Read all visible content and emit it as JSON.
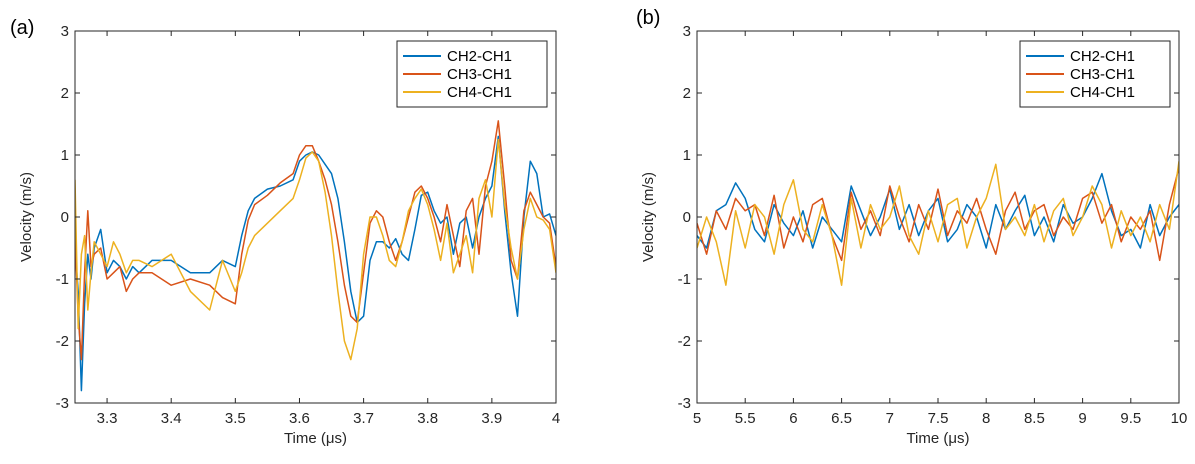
{
  "chart_data": [
    {
      "type": "line",
      "panel_label": "(a)",
      "xlabel": "Time (μs)",
      "ylabel": "Velocity (m/s)",
      "xlim": [
        3.25,
        4.0
      ],
      "ylim": [
        -3,
        3
      ],
      "xticks": [
        3.3,
        3.4,
        3.5,
        3.6,
        3.7,
        3.8,
        3.9,
        4
      ],
      "xtick_labels": [
        "3.3",
        "3.4",
        "3.5",
        "3.6",
        "3.7",
        "3.8",
        "3.9",
        "4"
      ],
      "yticks": [
        -3,
        -2,
        -1,
        0,
        1,
        2,
        3
      ],
      "ytick_labels": [
        "-3",
        "-2",
        "-1",
        "0",
        "1",
        "2",
        "3"
      ],
      "grid": false,
      "legend_position": "top-right",
      "series": [
        {
          "name": "CH2-CH1",
          "color": "#0072BD",
          "x": [
            3.25,
            3.255,
            3.26,
            3.265,
            3.27,
            3.275,
            3.28,
            3.29,
            3.3,
            3.31,
            3.32,
            3.33,
            3.34,
            3.35,
            3.37,
            3.4,
            3.43,
            3.46,
            3.48,
            3.5,
            3.51,
            3.52,
            3.53,
            3.55,
            3.57,
            3.59,
            3.6,
            3.61,
            3.62,
            3.63,
            3.64,
            3.65,
            3.66,
            3.67,
            3.68,
            3.69,
            3.7,
            3.71,
            3.72,
            3.73,
            3.74,
            3.75,
            3.76,
            3.77,
            3.78,
            3.79,
            3.8,
            3.81,
            3.82,
            3.83,
            3.84,
            3.85,
            3.86,
            3.87,
            3.88,
            3.89,
            3.9,
            3.91,
            3.92,
            3.93,
            3.94,
            3.95,
            3.96,
            3.97,
            3.98,
            3.99,
            4.0
          ],
          "y": [
            -0.5,
            -1.2,
            -2.8,
            -1.4,
            -0.6,
            -1.0,
            -0.5,
            -0.2,
            -0.9,
            -0.7,
            -0.8,
            -1.0,
            -0.8,
            -0.9,
            -0.7,
            -0.7,
            -0.9,
            -0.9,
            -0.7,
            -0.8,
            -0.3,
            0.1,
            0.3,
            0.45,
            0.5,
            0.6,
            0.9,
            1.0,
            1.05,
            1.0,
            0.85,
            0.7,
            0.3,
            -0.4,
            -1.2,
            -1.7,
            -1.6,
            -0.7,
            -0.4,
            -0.4,
            -0.5,
            -0.35,
            -0.6,
            -0.7,
            -0.2,
            0.35,
            0.4,
            0.1,
            -0.1,
            0.0,
            -0.6,
            -0.1,
            0.0,
            -0.5,
            0.0,
            0.3,
            0.5,
            1.3,
            0.1,
            -0.9,
            -1.6,
            0.0,
            0.9,
            0.7,
            0.0,
            0.05,
            -0.3
          ]
        },
        {
          "name": "CH3-CH1",
          "color": "#D95319",
          "x": [
            3.25,
            3.255,
            3.26,
            3.265,
            3.27,
            3.275,
            3.28,
            3.29,
            3.3,
            3.31,
            3.32,
            3.33,
            3.34,
            3.35,
            3.37,
            3.4,
            3.43,
            3.46,
            3.48,
            3.5,
            3.51,
            3.52,
            3.53,
            3.55,
            3.57,
            3.59,
            3.6,
            3.61,
            3.62,
            3.63,
            3.64,
            3.65,
            3.66,
            3.67,
            3.68,
            3.69,
            3.7,
            3.71,
            3.72,
            3.73,
            3.74,
            3.75,
            3.76,
            3.77,
            3.78,
            3.79,
            3.8,
            3.81,
            3.82,
            3.83,
            3.84,
            3.85,
            3.86,
            3.87,
            3.88,
            3.89,
            3.9,
            3.91,
            3.92,
            3.93,
            3.94,
            3.95,
            3.96,
            3.97,
            3.98,
            3.99,
            4.0
          ],
          "y": [
            -0.3,
            -1.6,
            -2.3,
            -0.9,
            0.1,
            -0.8,
            -0.6,
            -0.5,
            -1.0,
            -0.9,
            -0.8,
            -1.2,
            -1.0,
            -0.9,
            -0.9,
            -1.1,
            -1.0,
            -1.1,
            -1.3,
            -1.4,
            -0.6,
            -0.05,
            0.2,
            0.35,
            0.55,
            0.7,
            1.0,
            1.15,
            1.15,
            0.9,
            0.6,
            0.2,
            -0.4,
            -1.1,
            -1.6,
            -1.7,
            -0.9,
            -0.1,
            0.1,
            0.0,
            -0.4,
            -0.7,
            -0.4,
            0.0,
            0.4,
            0.5,
            0.3,
            0.0,
            -0.4,
            0.2,
            -0.3,
            -0.8,
            0.1,
            0.3,
            -0.6,
            0.5,
            0.9,
            1.55,
            0.5,
            -0.7,
            -1.0,
            0.1,
            0.4,
            0.2,
            0.0,
            -0.1,
            -0.8
          ]
        },
        {
          "name": "CH4-CH1",
          "color": "#EDB120",
          "x": [
            3.25,
            3.255,
            3.26,
            3.265,
            3.27,
            3.275,
            3.28,
            3.29,
            3.3,
            3.31,
            3.32,
            3.33,
            3.34,
            3.35,
            3.37,
            3.4,
            3.43,
            3.46,
            3.48,
            3.5,
            3.51,
            3.52,
            3.53,
            3.55,
            3.57,
            3.59,
            3.6,
            3.61,
            3.62,
            3.63,
            3.64,
            3.65,
            3.66,
            3.67,
            3.68,
            3.69,
            3.7,
            3.71,
            3.72,
            3.73,
            3.74,
            3.75,
            3.76,
            3.77,
            3.78,
            3.79,
            3.8,
            3.81,
            3.82,
            3.83,
            3.84,
            3.85,
            3.86,
            3.87,
            3.88,
            3.89,
            3.9,
            3.91,
            3.92,
            3.93,
            3.94,
            3.95,
            3.96,
            3.97,
            3.98,
            3.99,
            4.0
          ],
          "y": [
            0.6,
            -1.8,
            -0.6,
            -0.3,
            -1.5,
            -0.9,
            -0.4,
            -0.6,
            -0.8,
            -0.4,
            -0.6,
            -0.9,
            -0.7,
            -0.7,
            -0.8,
            -0.6,
            -1.2,
            -1.5,
            -0.7,
            -1.2,
            -0.9,
            -0.5,
            -0.3,
            -0.1,
            0.1,
            0.3,
            0.6,
            0.95,
            1.05,
            0.9,
            0.4,
            -0.3,
            -1.2,
            -2.0,
            -2.3,
            -1.8,
            -0.6,
            0.0,
            0.0,
            -0.3,
            -0.7,
            -0.8,
            -0.4,
            0.1,
            0.3,
            0.45,
            0.2,
            -0.2,
            -0.7,
            -0.1,
            -0.9,
            -0.6,
            -0.3,
            -0.9,
            0.3,
            0.6,
            0.0,
            1.25,
            0.2,
            -0.5,
            -1.0,
            -0.2,
            0.3,
            0.0,
            -0.05,
            -0.2,
            -0.9
          ]
        }
      ]
    },
    {
      "type": "line",
      "panel_label": "(b)",
      "xlabel": "Time (μs)",
      "ylabel": "Velocity (m/s)",
      "xlim": [
        5,
        10
      ],
      "ylim": [
        -3,
        3
      ],
      "xticks": [
        5,
        5.5,
        6,
        6.5,
        7,
        7.5,
        8,
        8.5,
        9,
        9.5,
        10
      ],
      "xtick_labels": [
        "5",
        "5.5",
        "6",
        "6.5",
        "7",
        "7.5",
        "8",
        "8.5",
        "9",
        "9.5",
        "10"
      ],
      "yticks": [
        -3,
        -2,
        -1,
        0,
        1,
        2,
        3
      ],
      "ytick_labels": [
        "-3",
        "-2",
        "-1",
        "0",
        "1",
        "2",
        "3"
      ],
      "grid": false,
      "legend_position": "top-right",
      "series": [
        {
          "name": "CH2-CH1",
          "color": "#0072BD",
          "x": [
            5.0,
            5.1,
            5.2,
            5.3,
            5.4,
            5.5,
            5.6,
            5.7,
            5.8,
            5.9,
            6.0,
            6.1,
            6.2,
            6.3,
            6.4,
            6.5,
            6.6,
            6.7,
            6.8,
            6.9,
            7.0,
            7.1,
            7.2,
            7.3,
            7.4,
            7.5,
            7.6,
            7.7,
            7.8,
            7.9,
            8.0,
            8.1,
            8.2,
            8.3,
            8.4,
            8.5,
            8.6,
            8.7,
            8.8,
            8.9,
            9.0,
            9.1,
            9.2,
            9.3,
            9.4,
            9.5,
            9.6,
            9.7,
            9.8,
            9.9,
            10.0
          ],
          "y": [
            -0.3,
            -0.5,
            0.1,
            0.2,
            0.55,
            0.3,
            -0.2,
            -0.4,
            0.2,
            -0.1,
            -0.3,
            0.1,
            -0.5,
            0.0,
            -0.2,
            -0.4,
            0.5,
            0.1,
            -0.3,
            0.0,
            0.45,
            -0.2,
            0.2,
            -0.3,
            0.1,
            0.3,
            -0.4,
            -0.2,
            0.2,
            0.0,
            -0.5,
            0.2,
            -0.2,
            0.1,
            0.35,
            -0.3,
            0.0,
            -0.4,
            0.2,
            -0.1,
            0.0,
            0.3,
            0.7,
            0.1,
            -0.3,
            -0.2,
            -0.5,
            0.2,
            -0.3,
            0.0,
            0.2
          ]
        },
        {
          "name": "CH3-CH1",
          "color": "#D95319",
          "x": [
            5.0,
            5.1,
            5.2,
            5.3,
            5.4,
            5.5,
            5.6,
            5.7,
            5.8,
            5.9,
            6.0,
            6.1,
            6.2,
            6.3,
            6.4,
            6.5,
            6.6,
            6.7,
            6.8,
            6.9,
            7.0,
            7.1,
            7.2,
            7.3,
            7.4,
            7.5,
            7.6,
            7.7,
            7.8,
            7.9,
            8.0,
            8.1,
            8.2,
            8.3,
            8.4,
            8.5,
            8.6,
            8.7,
            8.8,
            8.9,
            9.0,
            9.1,
            9.2,
            9.3,
            9.4,
            9.5,
            9.6,
            9.7,
            9.8,
            9.9,
            10.0
          ],
          "y": [
            -0.1,
            -0.6,
            0.1,
            -0.2,
            0.3,
            0.1,
            0.2,
            -0.3,
            0.35,
            -0.5,
            0.0,
            -0.4,
            0.2,
            0.3,
            -0.3,
            -0.7,
            0.4,
            -0.2,
            0.1,
            -0.3,
            0.5,
            0.0,
            -0.4,
            0.2,
            -0.2,
            0.45,
            -0.3,
            0.1,
            -0.1,
            0.3,
            -0.2,
            -0.6,
            0.1,
            0.4,
            -0.2,
            0.1,
            0.2,
            -0.3,
            0.0,
            -0.2,
            0.3,
            0.4,
            -0.1,
            0.2,
            -0.4,
            0.0,
            -0.2,
            0.1,
            -0.7,
            0.2,
            0.8
          ]
        },
        {
          "name": "CH4-CH1",
          "color": "#EDB120",
          "x": [
            5.0,
            5.1,
            5.2,
            5.3,
            5.4,
            5.5,
            5.6,
            5.7,
            5.8,
            5.9,
            6.0,
            6.1,
            6.2,
            6.3,
            6.4,
            6.5,
            6.6,
            6.7,
            6.8,
            6.9,
            7.0,
            7.1,
            7.2,
            7.3,
            7.4,
            7.5,
            7.6,
            7.7,
            7.8,
            7.9,
            8.0,
            8.1,
            8.2,
            8.3,
            8.4,
            8.5,
            8.6,
            8.7,
            8.8,
            8.9,
            9.0,
            9.1,
            9.2,
            9.3,
            9.4,
            9.5,
            9.6,
            9.7,
            9.8,
            9.9,
            10.0
          ],
          "y": [
            -0.5,
            0.0,
            -0.4,
            -1.1,
            0.1,
            -0.5,
            0.2,
            0.0,
            -0.6,
            0.2,
            0.6,
            -0.2,
            -0.4,
            0.2,
            -0.3,
            -1.1,
            0.3,
            -0.5,
            0.2,
            -0.2,
            0.0,
            0.5,
            -0.3,
            -0.6,
            0.1,
            -0.4,
            0.2,
            0.3,
            -0.5,
            0.0,
            0.3,
            0.85,
            -0.2,
            0.0,
            -0.3,
            0.2,
            -0.4,
            0.1,
            0.3,
            -0.3,
            0.0,
            0.5,
            0.2,
            -0.5,
            0.1,
            -0.3,
            0.0,
            -0.4,
            0.2,
            -0.2,
            0.9
          ]
        }
      ]
    }
  ]
}
